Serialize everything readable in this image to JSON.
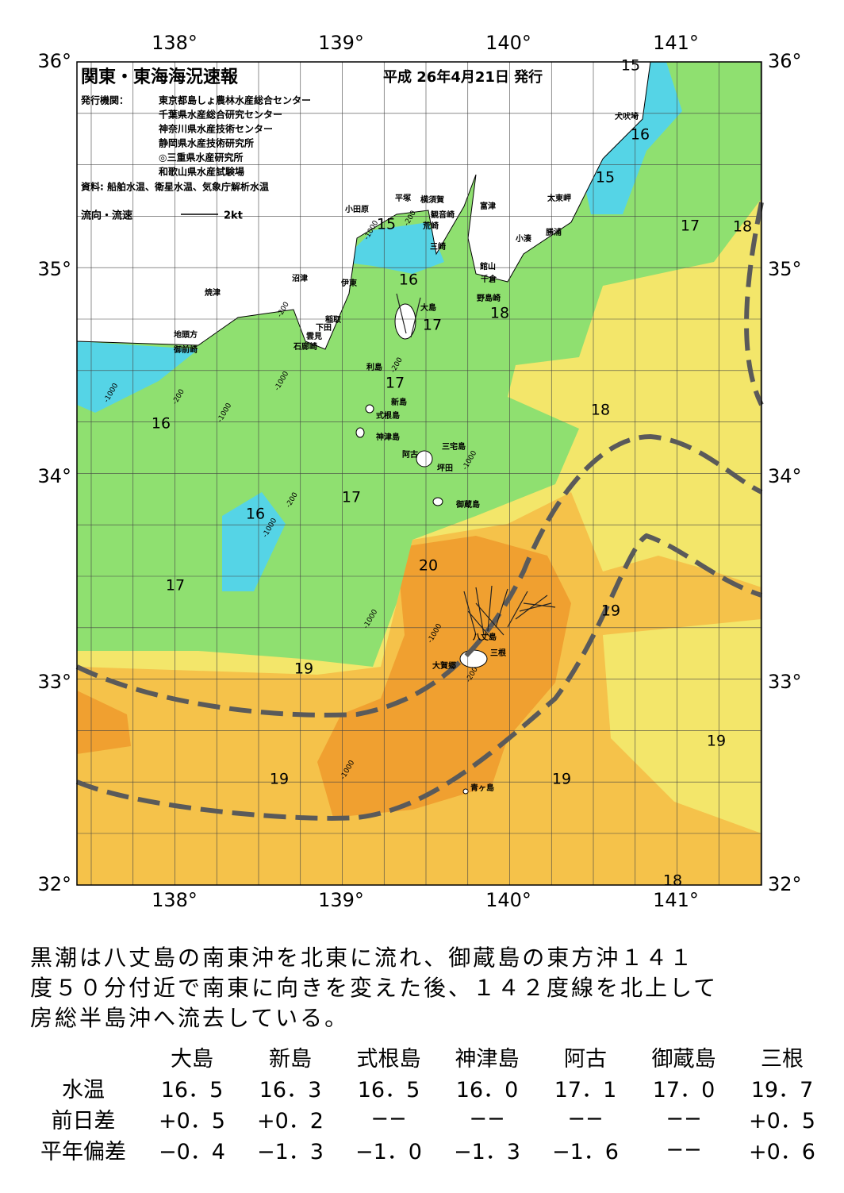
{
  "header": {
    "title": "関東・東海海況速報",
    "date": "平成 26年4月21日 発行",
    "publisher_label": "発行機関：",
    "publishers": [
      "東京都島しょ農林水産総合センター",
      "千葉県水産総合研究センター",
      "神奈川県水産技術センター",
      "静岡県水産技術研究所",
      "◎三重県水産研究所",
      "和歌山県水産試験場"
    ],
    "source": "資料: 船舶水温、衛星水温、気象庁解析水温",
    "scale_label": "流向・流速",
    "scale_value": "2kt"
  },
  "map": {
    "lon_labels": [
      "138°",
      "139°",
      "140°",
      "141°"
    ],
    "lat_labels": [
      "36°",
      "35°",
      "34°",
      "33°",
      "32°"
    ],
    "places": [
      "犬吠埼",
      "太東岬",
      "勝浦",
      "小湊",
      "富津",
      "館山",
      "千倉",
      "野島崎",
      "横須賀",
      "観音崎",
      "荒崎",
      "三崎",
      "平塚",
      "小田原",
      "沼津",
      "焼津",
      "伊東",
      "稲取",
      "下田",
      "雲見",
      "石廊崎",
      "地頭方",
      "御前崎",
      "大島",
      "利島",
      "新島",
      "式根島",
      "神津島",
      "三宅島",
      "阿古",
      "坪田",
      "御蔵島",
      "八丈島",
      "三根",
      "大賀郷",
      "青ヶ島"
    ],
    "temp_labels": [
      "15",
      "16",
      "15",
      "17",
      "18",
      "15",
      "16",
      "17",
      "18",
      "17",
      "18",
      "16",
      "17",
      "16",
      "17",
      "20",
      "19",
      "19",
      "19",
      "19",
      "19",
      "18"
    ],
    "depth_labels": [
      "-200",
      "-1000",
      "-200",
      "-1000",
      "-1000",
      "-200",
      "-1000",
      "-200",
      "-1000",
      "-1000",
      "-200",
      "-1000",
      "-1000",
      "-1000",
      "-200"
    ]
  },
  "text": {
    "lines": [
      "黒潮は八丈島の南東沖を北東に流れ、御蔵島の東方沖１４１",
      "度５０分付近で南東に向きを変えた後、１４２度線を北上して",
      "房総半島沖へ流去している。"
    ]
  },
  "table": {
    "columns": [
      "大島",
      "新島",
      "式根島",
      "神津島",
      "阿古",
      "御蔵島",
      "三根"
    ],
    "rows": [
      {
        "label": "水温",
        "values": [
          "16．5",
          "16．3",
          "16．5",
          "16．0",
          "17．1",
          "17．0",
          "19．7"
        ]
      },
      {
        "label": "前日差",
        "values": [
          "+0．5",
          "+0．2",
          "−−",
          "−−",
          "−−",
          "−−",
          "+0．5"
        ]
      },
      {
        "label": "平年偏差",
        "values": [
          "−0．4",
          "−1．3",
          "−1．0",
          "−1．3",
          "−1．6",
          "−−",
          "+0．6"
        ]
      }
    ]
  }
}
